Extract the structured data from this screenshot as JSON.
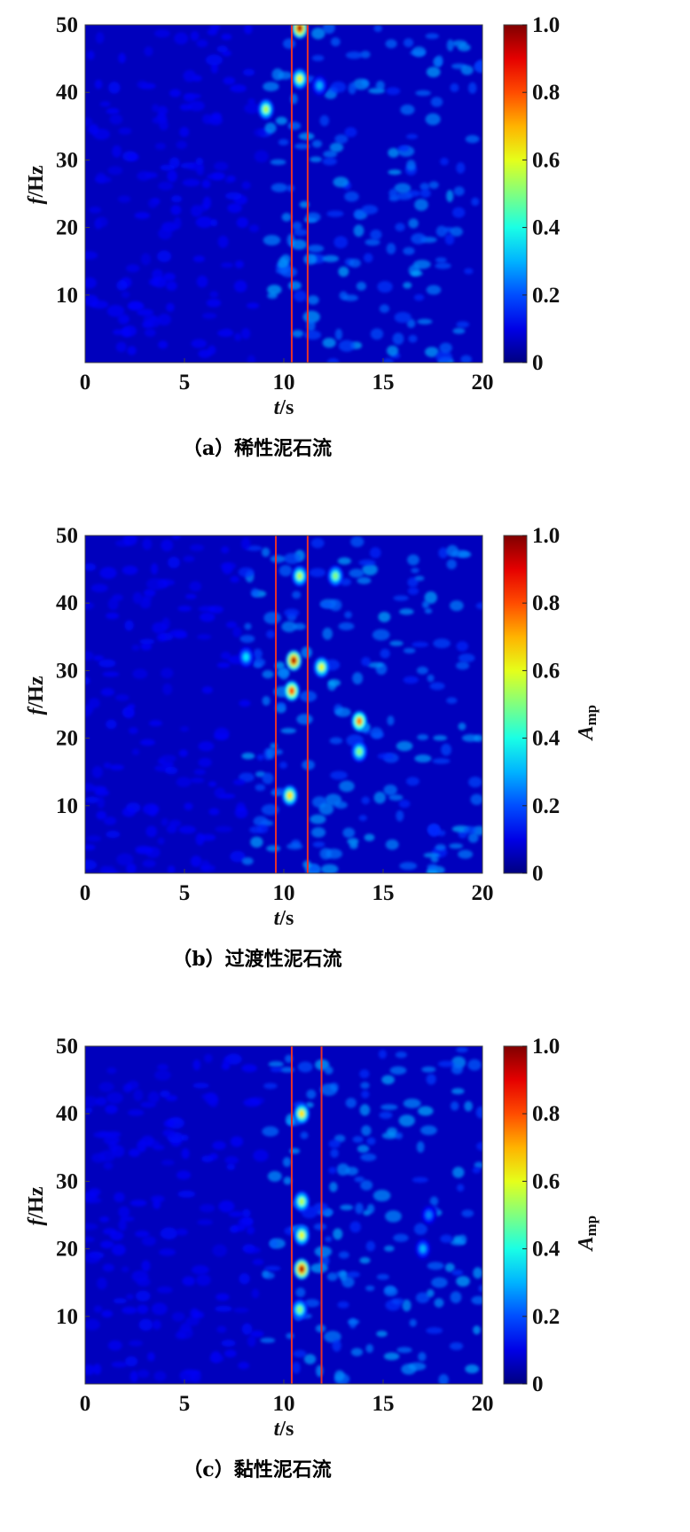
{
  "figure": {
    "panels": [
      {
        "caption": "（a）稀性泥石流",
        "ylabel": "f/Hz",
        "xlabel": "t/s",
        "colorbar_label": ""
      },
      {
        "caption": "（b）过渡性泥石流",
        "ylabel": "f/Hz",
        "xlabel": "t/s",
        "colorbar_label": "Amp"
      },
      {
        "caption": "（c）黏性泥石流",
        "ylabel": "f/Hz",
        "xlabel": "t/s",
        "colorbar_label": "Amp"
      }
    ]
  },
  "chart_data": [
    {
      "type": "heatmap",
      "xlabel": "t/s",
      "ylabel": "f/Hz",
      "xlim": [
        0,
        20
      ],
      "ylim": [
        0,
        50
      ],
      "xticks": [
        "0",
        "5",
        "10",
        "15",
        "20"
      ],
      "yticks": [
        "10",
        "20",
        "30",
        "40",
        "50"
      ],
      "colorbar": {
        "min": 0,
        "max": 1.0,
        "ticks": [
          "0",
          "0.2",
          "0.4",
          "0.6",
          "0.8",
          "1.0"
        ]
      },
      "markers_t": [
        10.4,
        11.2
      ],
      "hotspots": [
        {
          "t": 10.8,
          "f": 49.5,
          "amp": 0.95
        },
        {
          "t": 10.8,
          "f": 42,
          "amp": 0.6
        },
        {
          "t": 9.1,
          "f": 37.5,
          "amp": 0.55
        },
        {
          "t": 11.8,
          "f": 41,
          "amp": 0.3
        }
      ]
    },
    {
      "type": "heatmap",
      "xlabel": "t/s",
      "ylabel": "f/Hz",
      "xlim": [
        0,
        20
      ],
      "ylim": [
        0,
        50
      ],
      "xticks": [
        "0",
        "5",
        "10",
        "15",
        "20"
      ],
      "yticks": [
        "10",
        "20",
        "30",
        "40",
        "50"
      ],
      "colorbar": {
        "label": "Amp",
        "min": 0,
        "max": 1.0,
        "ticks": [
          "0",
          "0.2",
          "0.4",
          "0.6",
          "0.8",
          "1.0"
        ]
      },
      "markers_t": [
        9.6,
        11.2
      ],
      "hotspots": [
        {
          "t": 10.5,
          "f": 31.5,
          "amp": 0.95
        },
        {
          "t": 10.4,
          "f": 27,
          "amp": 0.8
        },
        {
          "t": 10.3,
          "f": 11.5,
          "amp": 0.65
        },
        {
          "t": 13.8,
          "f": 22.5,
          "amp": 0.75
        },
        {
          "t": 11.9,
          "f": 30.5,
          "amp": 0.6
        },
        {
          "t": 10.8,
          "f": 44,
          "amp": 0.55
        },
        {
          "t": 13.8,
          "f": 18,
          "amp": 0.5
        },
        {
          "t": 12.6,
          "f": 44,
          "amp": 0.5
        },
        {
          "t": 8.1,
          "f": 32,
          "amp": 0.35
        }
      ]
    },
    {
      "type": "heatmap",
      "xlabel": "t/s",
      "ylabel": "f/Hz",
      "xlim": [
        0,
        20
      ],
      "ylim": [
        0,
        50
      ],
      "xticks": [
        "0",
        "5",
        "10",
        "15",
        "20"
      ],
      "yticks": [
        "10",
        "20",
        "30",
        "40",
        "50"
      ],
      "colorbar": {
        "label": "Amp",
        "min": 0,
        "max": 1.0,
        "ticks": [
          "0",
          "0.2",
          "0.4",
          "0.6",
          "0.8",
          "1.0"
        ]
      },
      "markers_t": [
        10.4,
        11.9
      ],
      "hotspots": [
        {
          "t": 10.9,
          "f": 17,
          "amp": 0.95
        },
        {
          "t": 10.9,
          "f": 40,
          "amp": 0.65
        },
        {
          "t": 10.9,
          "f": 22,
          "amp": 0.6
        },
        {
          "t": 10.9,
          "f": 27,
          "amp": 0.55
        },
        {
          "t": 10.8,
          "f": 11,
          "amp": 0.5
        },
        {
          "t": 17,
          "f": 20,
          "amp": 0.3
        },
        {
          "t": 17.3,
          "f": 25,
          "amp": 0.25
        }
      ]
    }
  ]
}
